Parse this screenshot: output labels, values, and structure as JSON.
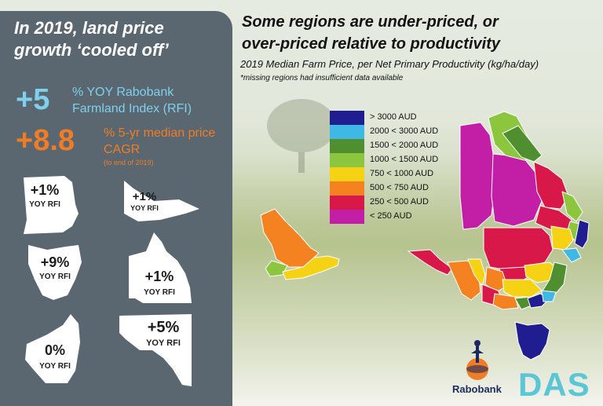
{
  "left_panel": {
    "headline": "In 2019, land price growth ‘cooled off’",
    "stat1": {
      "value": "+5",
      "label": "% YOY Rabobank Farmland Index (RFI)"
    },
    "stat2": {
      "value": "+8.8",
      "label": "% 5-yr median price CAGR",
      "note": "(to end of 2019)"
    },
    "states": [
      {
        "value": "+1%",
        "label": "YOY RFI"
      },
      {
        "value": "+1%",
        "label": "YOY RFI"
      },
      {
        "value": "+9%",
        "label": "YOY RFI"
      },
      {
        "value": "+1%",
        "label": "YOY RFI"
      },
      {
        "value": "0%",
        "label": "YOY RFI"
      },
      {
        "value": "+5%",
        "label": "YOY RFI"
      }
    ]
  },
  "main": {
    "title_line1": "Some regions are under-priced, or",
    "title_line2": "over-priced relative to productivity",
    "subtitle": "2019 Median Farm Price, per Net Primary Productivity (kg/ha/day)",
    "footnote": "*missing regions had insufficient data available"
  },
  "legend": [
    {
      "label": "> 3000 AUD",
      "color": "#1f1d8f"
    },
    {
      "label": "2000 < 3000 AUD",
      "color": "#3fb8e6"
    },
    {
      "label": "1500 < 2000 AUD",
      "color": "#4f8f2f"
    },
    {
      "label": "1000 < 1500 AUD",
      "color": "#8cc63f"
    },
    {
      "label": "750 < 1000 AUD",
      "color": "#f5d314"
    },
    {
      "label": "500 < 750 AUD",
      "color": "#f58220"
    },
    {
      "label": "250 <  500 AUD",
      "color": "#d9184a"
    },
    {
      "label": "< 250 AUD",
      "color": "#c21fa6"
    }
  ],
  "logos": {
    "rabobank": "Rabobank",
    "das": "DAS"
  }
}
